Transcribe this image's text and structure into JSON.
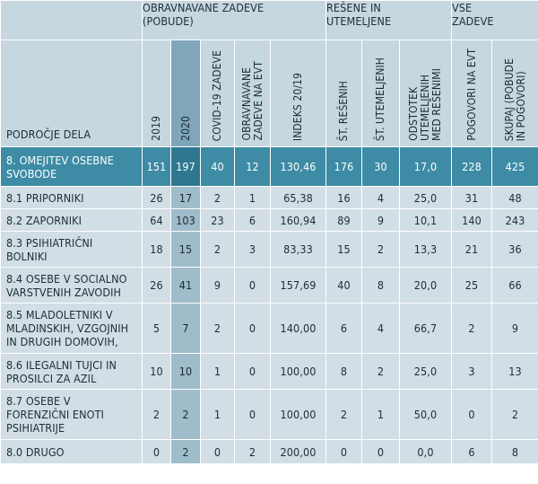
{
  "groups": [
    {
      "label": "OBRAVNAVANE ZADEVE\n(POBUDE)",
      "span": 5
    },
    {
      "label": "REŠENE IN\nUTEMELJENE",
      "span": 3
    },
    {
      "label": "VSE\nZADEVE",
      "span": 2
    }
  ],
  "area_header": "Področje DELA",
  "columns": [
    "2019",
    "2020",
    "COVID-19 zadeve",
    "Obravnavane\nzadeve na EVT",
    "Indeks 20/19",
    "Št. rešenih",
    "Št. utemeljenih",
    "Odstotek\nutemeljenih\nmed rešenimi",
    "Pogovori na EVT",
    "Skupaj (pobude\nin pogovori)"
  ],
  "rows": [
    {
      "label": "8. OMEJITEV OSEBNE\nSVOBODE",
      "values": [
        "151",
        "197",
        "40",
        "12",
        "130,46",
        "176",
        "30",
        "17,0",
        "228",
        "425"
      ],
      "main": true
    },
    {
      "label": "8.1 Priporniki",
      "values": [
        "26",
        "17",
        "2",
        "1",
        "65,38",
        "16",
        "4",
        "25,0",
        "31",
        "48"
      ]
    },
    {
      "label": "8.2 Zaporniki",
      "values": [
        "64",
        "103",
        "23",
        "6",
        "160,94",
        "89",
        "9",
        "10,1",
        "140",
        "243"
      ]
    },
    {
      "label": "8.3 Psihiatrični\nbolniki",
      "values": [
        "18",
        "15",
        "2",
        "3",
        "83,33",
        "15",
        "2",
        "13,3",
        "21",
        "36"
      ]
    },
    {
      "label": "8.4 Osebe v socialno\nvarstvenih zavodih",
      "values": [
        "26",
        "41",
        "9",
        "0",
        "157,69",
        "40",
        "8",
        "20,0",
        "25",
        "66"
      ]
    },
    {
      "label": "8.5 Mladoletniki v\nmladinskih, vzgojnih\nin drugih domovih,",
      "values": [
        "5",
        "7",
        "2",
        "0",
        "140,00",
        "6",
        "4",
        "66,7",
        "2",
        "9"
      ]
    },
    {
      "label": "8.6 Ilegalni tujci in\nprosilci za azil",
      "values": [
        "10",
        "10",
        "1",
        "0",
        "100,00",
        "8",
        "2",
        "25,0",
        "3",
        "13"
      ]
    },
    {
      "label": "8.7 Osebe v\nforenzični enoti\npsihiatrije",
      "values": [
        "2",
        "2",
        "1",
        "0",
        "100,00",
        "2",
        "1",
        "50,0",
        "0",
        "2"
      ]
    },
    {
      "label": "8.0 Drugo",
      "values": [
        "0",
        "2",
        "0",
        "2",
        "200,00",
        "0",
        "0",
        "0,0",
        "6",
        "8"
      ]
    }
  ]
}
